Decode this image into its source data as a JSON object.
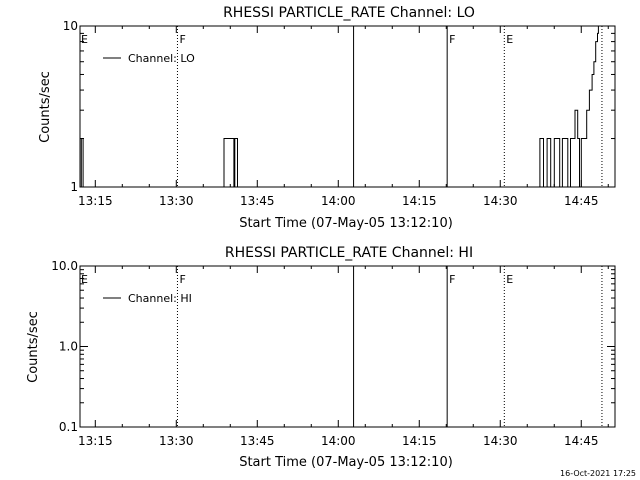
{
  "colors": {
    "background": "#ffffff",
    "foreground": "#000000"
  },
  "footer_stamp": "16-Oct-2021 17:25",
  "chart_data": [
    {
      "type": "line",
      "title": "RHESSI PARTICLE_RATE Channel: LO",
      "xlabel": "Start Time (07-May-05 13:12:10)",
      "ylabel": "Counts/sec",
      "y_scale": "log",
      "ylim": [
        1,
        10
      ],
      "xlim": [
        "13:12:10",
        "14:51:15"
      ],
      "y_ticks": [
        "1",
        "10"
      ],
      "x_ticks": [
        "13:15",
        "13:30",
        "13:45",
        "14:00",
        "14:15",
        "14:30",
        "14:45"
      ],
      "legend": {
        "entries": [
          "Channel: LO"
        ],
        "placement": "top-left"
      },
      "series": [
        {
          "name": "Channel: LO",
          "points": [
            [
              "13:12:20",
              1
            ],
            [
              "13:12:24",
              2
            ],
            [
              "13:12:40",
              2
            ],
            [
              "13:12:44",
              1
            ],
            [
              "13:38:40",
              1
            ],
            [
              "13:38:50",
              2
            ],
            [
              "13:40:30",
              2
            ],
            [
              "13:40:40",
              1
            ],
            [
              "13:40:50",
              2
            ],
            [
              "13:41:10",
              2
            ],
            [
              "13:41:20",
              1
            ],
            [
              "14:37:10",
              1
            ],
            [
              "14:37:20",
              2
            ],
            [
              "14:37:50",
              2
            ],
            [
              "14:38:00",
              1
            ],
            [
              "14:38:30",
              1
            ],
            [
              "14:38:40",
              2
            ],
            [
              "14:39:10",
              2
            ],
            [
              "14:39:20",
              1
            ],
            [
              "14:39:50",
              1
            ],
            [
              "14:40:00",
              2
            ],
            [
              "14:40:50",
              2
            ],
            [
              "14:41:00",
              1
            ],
            [
              "14:41:20",
              1
            ],
            [
              "14:41:30",
              2
            ],
            [
              "14:42:20",
              2
            ],
            [
              "14:42:30",
              1
            ],
            [
              "14:42:50",
              1
            ],
            [
              "14:43:00",
              2
            ],
            [
              "14:43:40",
              2
            ],
            [
              "14:43:50",
              3
            ],
            [
              "14:44:20",
              2
            ],
            [
              "14:44:40",
              1
            ],
            [
              "14:45:00",
              2
            ],
            [
              "14:45:40",
              2
            ],
            [
              "14:46:00",
              3
            ],
            [
              "14:46:30",
              4
            ],
            [
              "14:47:00",
              5
            ],
            [
              "14:47:20",
              6
            ],
            [
              "14:47:40",
              8
            ],
            [
              "14:48:00",
              9
            ],
            [
              "14:48:10",
              10
            ]
          ]
        }
      ],
      "vertical_markers": [
        {
          "time": "13:30:13",
          "style": "dotted",
          "label": "F"
        },
        {
          "time": "14:02:50",
          "style": "solid",
          "label": ""
        },
        {
          "time": "14:20:10",
          "style": "solid",
          "label": "F"
        },
        {
          "time": "14:30:45",
          "style": "dotted",
          "label": "E"
        },
        {
          "time": "14:48:50",
          "style": "dotted",
          "label": ""
        }
      ],
      "edge_labels": [
        {
          "time": "13:12:10",
          "label": "E"
        }
      ]
    },
    {
      "type": "line",
      "title": "RHESSI PARTICLE_RATE Channel: HI",
      "xlabel": "Start Time (07-May-05 13:12:10)",
      "ylabel": "Counts/sec",
      "y_scale": "log",
      "ylim": [
        0.1,
        10.0
      ],
      "xlim": [
        "13:12:10",
        "14:51:15"
      ],
      "y_ticks": [
        "0.1",
        "1.0",
        "10.0"
      ],
      "x_ticks": [
        "13:15",
        "13:30",
        "13:45",
        "14:00",
        "14:15",
        "14:30",
        "14:45"
      ],
      "legend": {
        "entries": [
          "Channel: HI"
        ],
        "placement": "top-left"
      },
      "series": [
        {
          "name": "Channel: HI",
          "points": []
        }
      ],
      "vertical_markers": [
        {
          "time": "13:30:13",
          "style": "dotted",
          "label": "F"
        },
        {
          "time": "14:02:50",
          "style": "solid",
          "label": ""
        },
        {
          "time": "14:20:10",
          "style": "solid",
          "label": "F"
        },
        {
          "time": "14:30:45",
          "style": "dotted",
          "label": "E"
        },
        {
          "time": "14:48:50",
          "style": "dotted",
          "label": ""
        }
      ],
      "edge_labels": [
        {
          "time": "13:12:10",
          "label": "E"
        }
      ]
    }
  ]
}
